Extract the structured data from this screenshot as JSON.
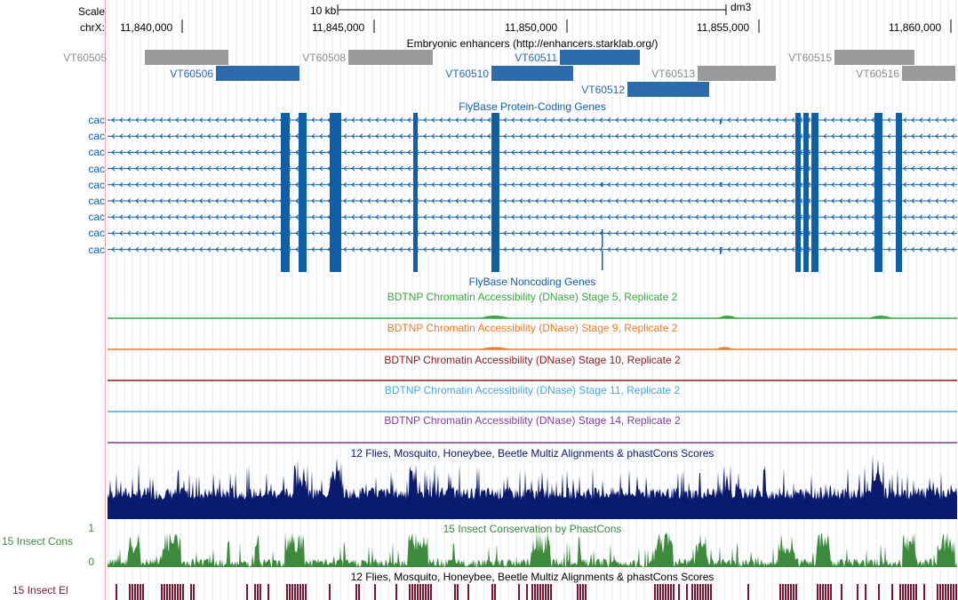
{
  "ruler": {
    "scale_label": "Scale",
    "chr_label": "chrX:",
    "scale_text": "10 kb",
    "assembly": "dm3",
    "positions": [
      "11,840,000",
      "11,845,000",
      "11,850,000",
      "11,855,000",
      "11,860,000"
    ]
  },
  "tracks": {
    "enhancers": {
      "title": "Embryonic enhancers (http://enhancers.starklab.org/)",
      "items": [
        {
          "name": "VT60505",
          "color": "#999999"
        },
        {
          "name": "VT60506",
          "color": "#2d6aa8"
        },
        {
          "name": "VT60508",
          "color": "#999999"
        },
        {
          "name": "VT60510",
          "color": "#2d6aa8"
        },
        {
          "name": "VT60511",
          "color": "#2d6aa8"
        },
        {
          "name": "VT60512",
          "color": "#2d6aa8"
        },
        {
          "name": "VT60513",
          "color": "#999999"
        },
        {
          "name": "VT60515",
          "color": "#999999"
        },
        {
          "name": "VT60516",
          "color": "#999999"
        }
      ]
    },
    "protein_coding": {
      "title": "FlyBase Protein-Coding Genes",
      "gene_label": "cac",
      "color": "#0f5fa8"
    },
    "noncoding": {
      "title": "FlyBase Noncoding Genes"
    },
    "dnase": [
      {
        "title": "BDTNP Chromatin Accessibility (DNase) Stage 5, Replicate 2",
        "color": "#3aa83a"
      },
      {
        "title": "BDTNP Chromatin Accessibility (DNase) Stage 9, Replicate 2",
        "color": "#f07a22"
      },
      {
        "title": "BDTNP Chromatin Accessibility (DNase) Stage 10, Replicate 2",
        "color": "#8b1a1a"
      },
      {
        "title": "BDTNP Chromatin Accessibility (DNase) Stage 11, Replicate 2",
        "color": "#4aa8d8"
      },
      {
        "title": "BDTNP Chromatin Accessibility (DNase) Stage 14, Replicate 2",
        "color": "#7b3fa0"
      }
    ],
    "multiz": {
      "title": "12 Flies, Mosquito, Honeybee, Beetle Multiz Alignments & phastCons Scores",
      "color": "#0a1a6e"
    },
    "phastcons": {
      "title": "15 Insect Conservation by PhastCons",
      "left_label": "15 Insect Cons",
      "ymax": "1",
      "ymin": "0",
      "color": "#3c8a3c"
    },
    "elements": {
      "title": "12 Flies, Mosquito, Honeybee, Beetle Multiz Alignments & phastCons Scores",
      "left_label": "15 Insect El",
      "color": "#7a1430"
    }
  }
}
